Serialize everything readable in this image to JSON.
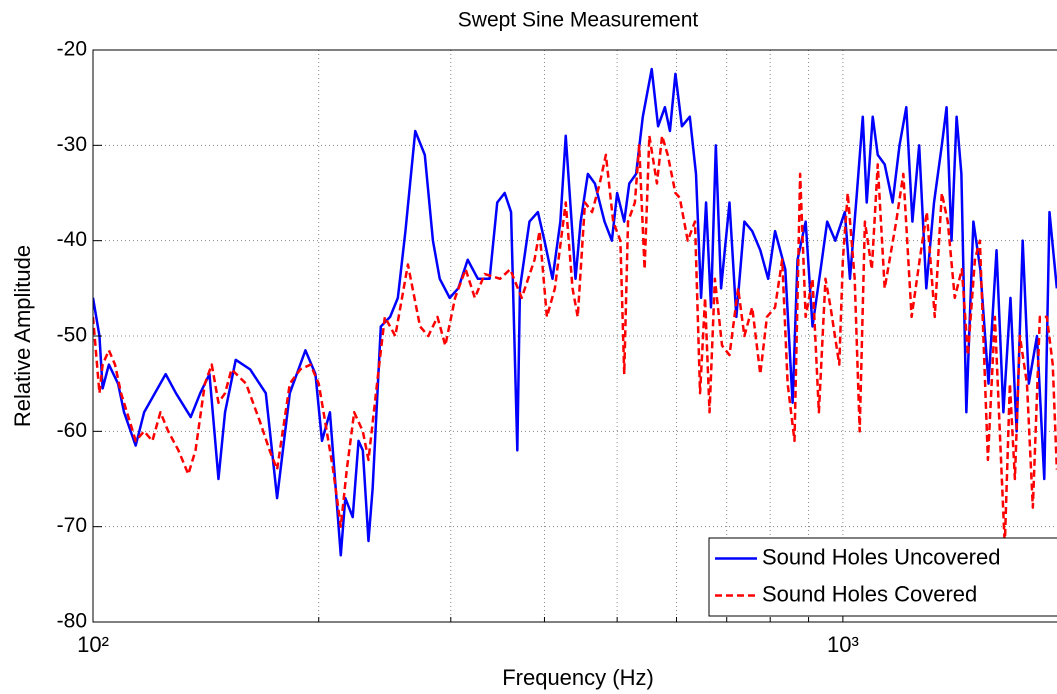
{
  "chart_data": {
    "type": "line",
    "title": "Swept Sine Measurement",
    "x_label": "Frequency (Hz)",
    "y_label": "Relative Amplitude",
    "xscale": "log",
    "xlim": [
      100,
      1930
    ],
    "ylim": [
      -80,
      -20
    ],
    "xticks": [
      {
        "value": 100,
        "label": "10²"
      },
      {
        "value": 1000,
        "label": "10³"
      }
    ],
    "xgrid_minor": [
      200,
      300,
      400,
      500,
      600,
      700,
      800,
      900
    ],
    "yticks": [
      -80,
      -70,
      -60,
      -50,
      -40,
      -30,
      -20
    ],
    "grid": true,
    "legend": "lower right",
    "series": [
      {
        "name": "Sound Holes Uncovered",
        "color": "#0000ff",
        "style": "solid",
        "x": [
          100,
          102,
          103,
          105,
          108,
          110,
          114,
          117,
          125,
          129,
          135,
          139,
          143,
          147,
          150,
          155,
          162,
          170,
          176,
          183,
          192,
          198,
          202,
          207,
          214,
          217,
          222,
          226,
          229,
          233,
          236,
          242,
          249,
          255,
          261,
          269,
          277,
          284,
          290,
          299,
          307,
          316,
          326,
          338,
          346,
          354,
          361,
          368,
          371,
          382,
          392,
          400,
          410,
          420,
          427,
          433,
          440,
          447,
          457,
          467,
          481,
          492,
          500,
          511,
          519,
          530,
          541,
          556,
          567,
          579,
          588,
          598,
          610,
          625,
          637,
          647,
          657,
          667,
          677,
          688,
          706,
          721,
          739,
          757,
          776,
          795,
          812,
          838,
          857,
          870,
          892,
          911,
          934,
          953,
          977,
          1006,
          1022,
          1044,
          1063,
          1076,
          1096,
          1113,
          1137,
          1165,
          1190,
          1215,
          1238,
          1264,
          1292,
          1323,
          1355,
          1375,
          1396,
          1418,
          1439,
          1461,
          1493,
          1525,
          1564,
          1603,
          1637,
          1673,
          1705,
          1737,
          1770,
          1815,
          1856,
          1886,
          1929
        ],
        "values": [
          -46,
          -50,
          -55.5,
          -53,
          -55,
          -58,
          -61.5,
          -58,
          -54,
          -56,
          -58.5,
          -56,
          -54,
          -65,
          -58,
          -52.5,
          -53.5,
          -56,
          -67,
          -56,
          -51.5,
          -54,
          -61,
          -58,
          -73,
          -67,
          -69,
          -61,
          -62,
          -71.5,
          -66,
          -49,
          -48,
          -46,
          -39,
          -28.5,
          -31,
          -40,
          -44,
          -46,
          -45,
          -42,
          -44,
          -44,
          -36,
          -35,
          -37,
          -62,
          -45,
          -38,
          -37,
          -40,
          -44,
          -38,
          -29,
          -36,
          -44,
          -38,
          -33,
          -34,
          -38,
          -40,
          -35,
          -38,
          -34,
          -33,
          -27,
          -22,
          -28,
          -26,
          -28.5,
          -22.5,
          -28,
          -27,
          -33,
          -46,
          -36,
          -47,
          -30,
          -45,
          -36,
          -48,
          -38,
          -39,
          -41,
          -44,
          -39,
          -43,
          -57,
          -42,
          -38,
          -49,
          -43,
          -38,
          -40,
          -37,
          -44,
          -35,
          -27,
          -36,
          -27,
          -31,
          -32,
          -36,
          -30,
          -26,
          -38,
          -30,
          -45,
          -36,
          -30,
          -26,
          -40,
          -27,
          -33,
          -58,
          -38,
          -43,
          -55,
          -41,
          -58,
          -46,
          -60,
          -40,
          -55,
          -50,
          -65,
          -37,
          -45
        ]
      },
      {
        "name": "Sound Holes Covered",
        "color": "#ff0000",
        "style": "dashed",
        "x": [
          100,
          102,
          103,
          105,
          107,
          109,
          112,
          114,
          117,
          120,
          123,
          126,
          130,
          134,
          137,
          141,
          144,
          147,
          150,
          153,
          160,
          167,
          172,
          176,
          183,
          189,
          195,
          200,
          204,
          209,
          214,
          218,
          223,
          229,
          233,
          240,
          245,
          253,
          263,
          273,
          280,
          288,
          295,
          304,
          314,
          323,
          333,
          349,
          360,
          373,
          388,
          394,
          403,
          413,
          427,
          436,
          443,
          453,
          463,
          474,
          483,
          494,
          505,
          511,
          517,
          528,
          535,
          544,
          552,
          565,
          574,
          584,
          598,
          606,
          621,
          635,
          645,
          655,
          664,
          675,
          690,
          706,
          725,
          739,
          757,
          776,
          792,
          812,
          830,
          844,
          862,
          877,
          892,
          911,
          929,
          948,
          963,
          989,
          1000,
          1015,
          1037,
          1053,
          1070,
          1093,
          1113,
          1137,
          1178,
          1204,
          1235,
          1266,
          1294,
          1326,
          1355,
          1380,
          1410,
          1441,
          1468,
          1500,
          1523,
          1561,
          1595,
          1619,
          1644,
          1670,
          1696,
          1722,
          1760,
          1792,
          1831,
          1871,
          1905,
          1929
        ],
        "values": [
          -48,
          -56,
          -53,
          -51.5,
          -53,
          -56,
          -59,
          -61,
          -60,
          -61,
          -58,
          -60,
          -62,
          -64.5,
          -62,
          -55,
          -53,
          -57,
          -56,
          -53.5,
          -55,
          -59,
          -62,
          -64,
          -55,
          -53.5,
          -53,
          -55,
          -59,
          -64,
          -70,
          -64,
          -58,
          -60,
          -63,
          -54,
          -48,
          -50,
          -42.5,
          -49,
          -50,
          -48,
          -51,
          -46,
          -43,
          -46,
          -43.5,
          -44,
          -43,
          -46,
          -42,
          -39,
          -48,
          -45,
          -36,
          -45,
          -48,
          -36,
          -37,
          -34,
          -31,
          -38,
          -40,
          -54,
          -38,
          -36,
          -30,
          -43,
          -29,
          -34,
          -29,
          -31,
          -35,
          -35.5,
          -40,
          -38,
          -56,
          -46,
          -58,
          -44,
          -51,
          -52,
          -45,
          -50,
          -47,
          -54,
          -48,
          -47,
          -42,
          -55,
          -61,
          -33,
          -48,
          -44,
          -58,
          -44,
          -47,
          -53,
          -42,
          -35,
          -44,
          -60,
          -38,
          -43,
          -32,
          -45,
          -38,
          -33,
          -48,
          -42,
          -37,
          -48,
          -35,
          -38,
          -46,
          -43,
          -52,
          -42,
          -40,
          -63,
          -48,
          -60,
          -72,
          -55,
          -65,
          -50,
          -55,
          -68,
          -48,
          -48,
          -53,
          -64
        ]
      }
    ]
  }
}
